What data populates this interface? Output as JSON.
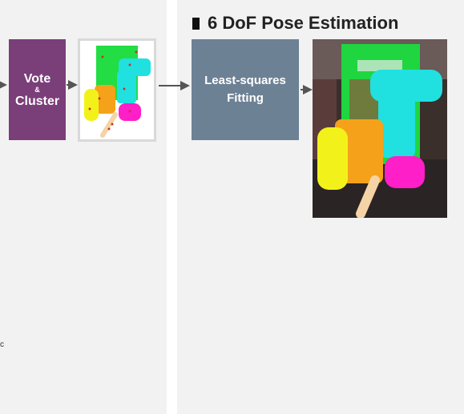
{
  "section": {
    "title": "6 DoF Pose Estimation"
  },
  "vote_cluster": {
    "line1": "Vote",
    "amp": "&",
    "line2": "Cluster"
  },
  "fitting": {
    "line1": "Least-squares",
    "line2": "Fitting"
  },
  "left_edge_fragment": "c",
  "colors": {
    "panel_bg": "#f2f2f2",
    "vote_box": "#7a3e79",
    "fitting_box": "#6d8195",
    "arrow": "#555555",
    "green": "#22dd44",
    "cyan": "#20e0e0",
    "yellow": "#f2f21a",
    "orange": "#f5a21a",
    "magenta": "#ff1fc8",
    "peach": "#f4d3a6"
  }
}
